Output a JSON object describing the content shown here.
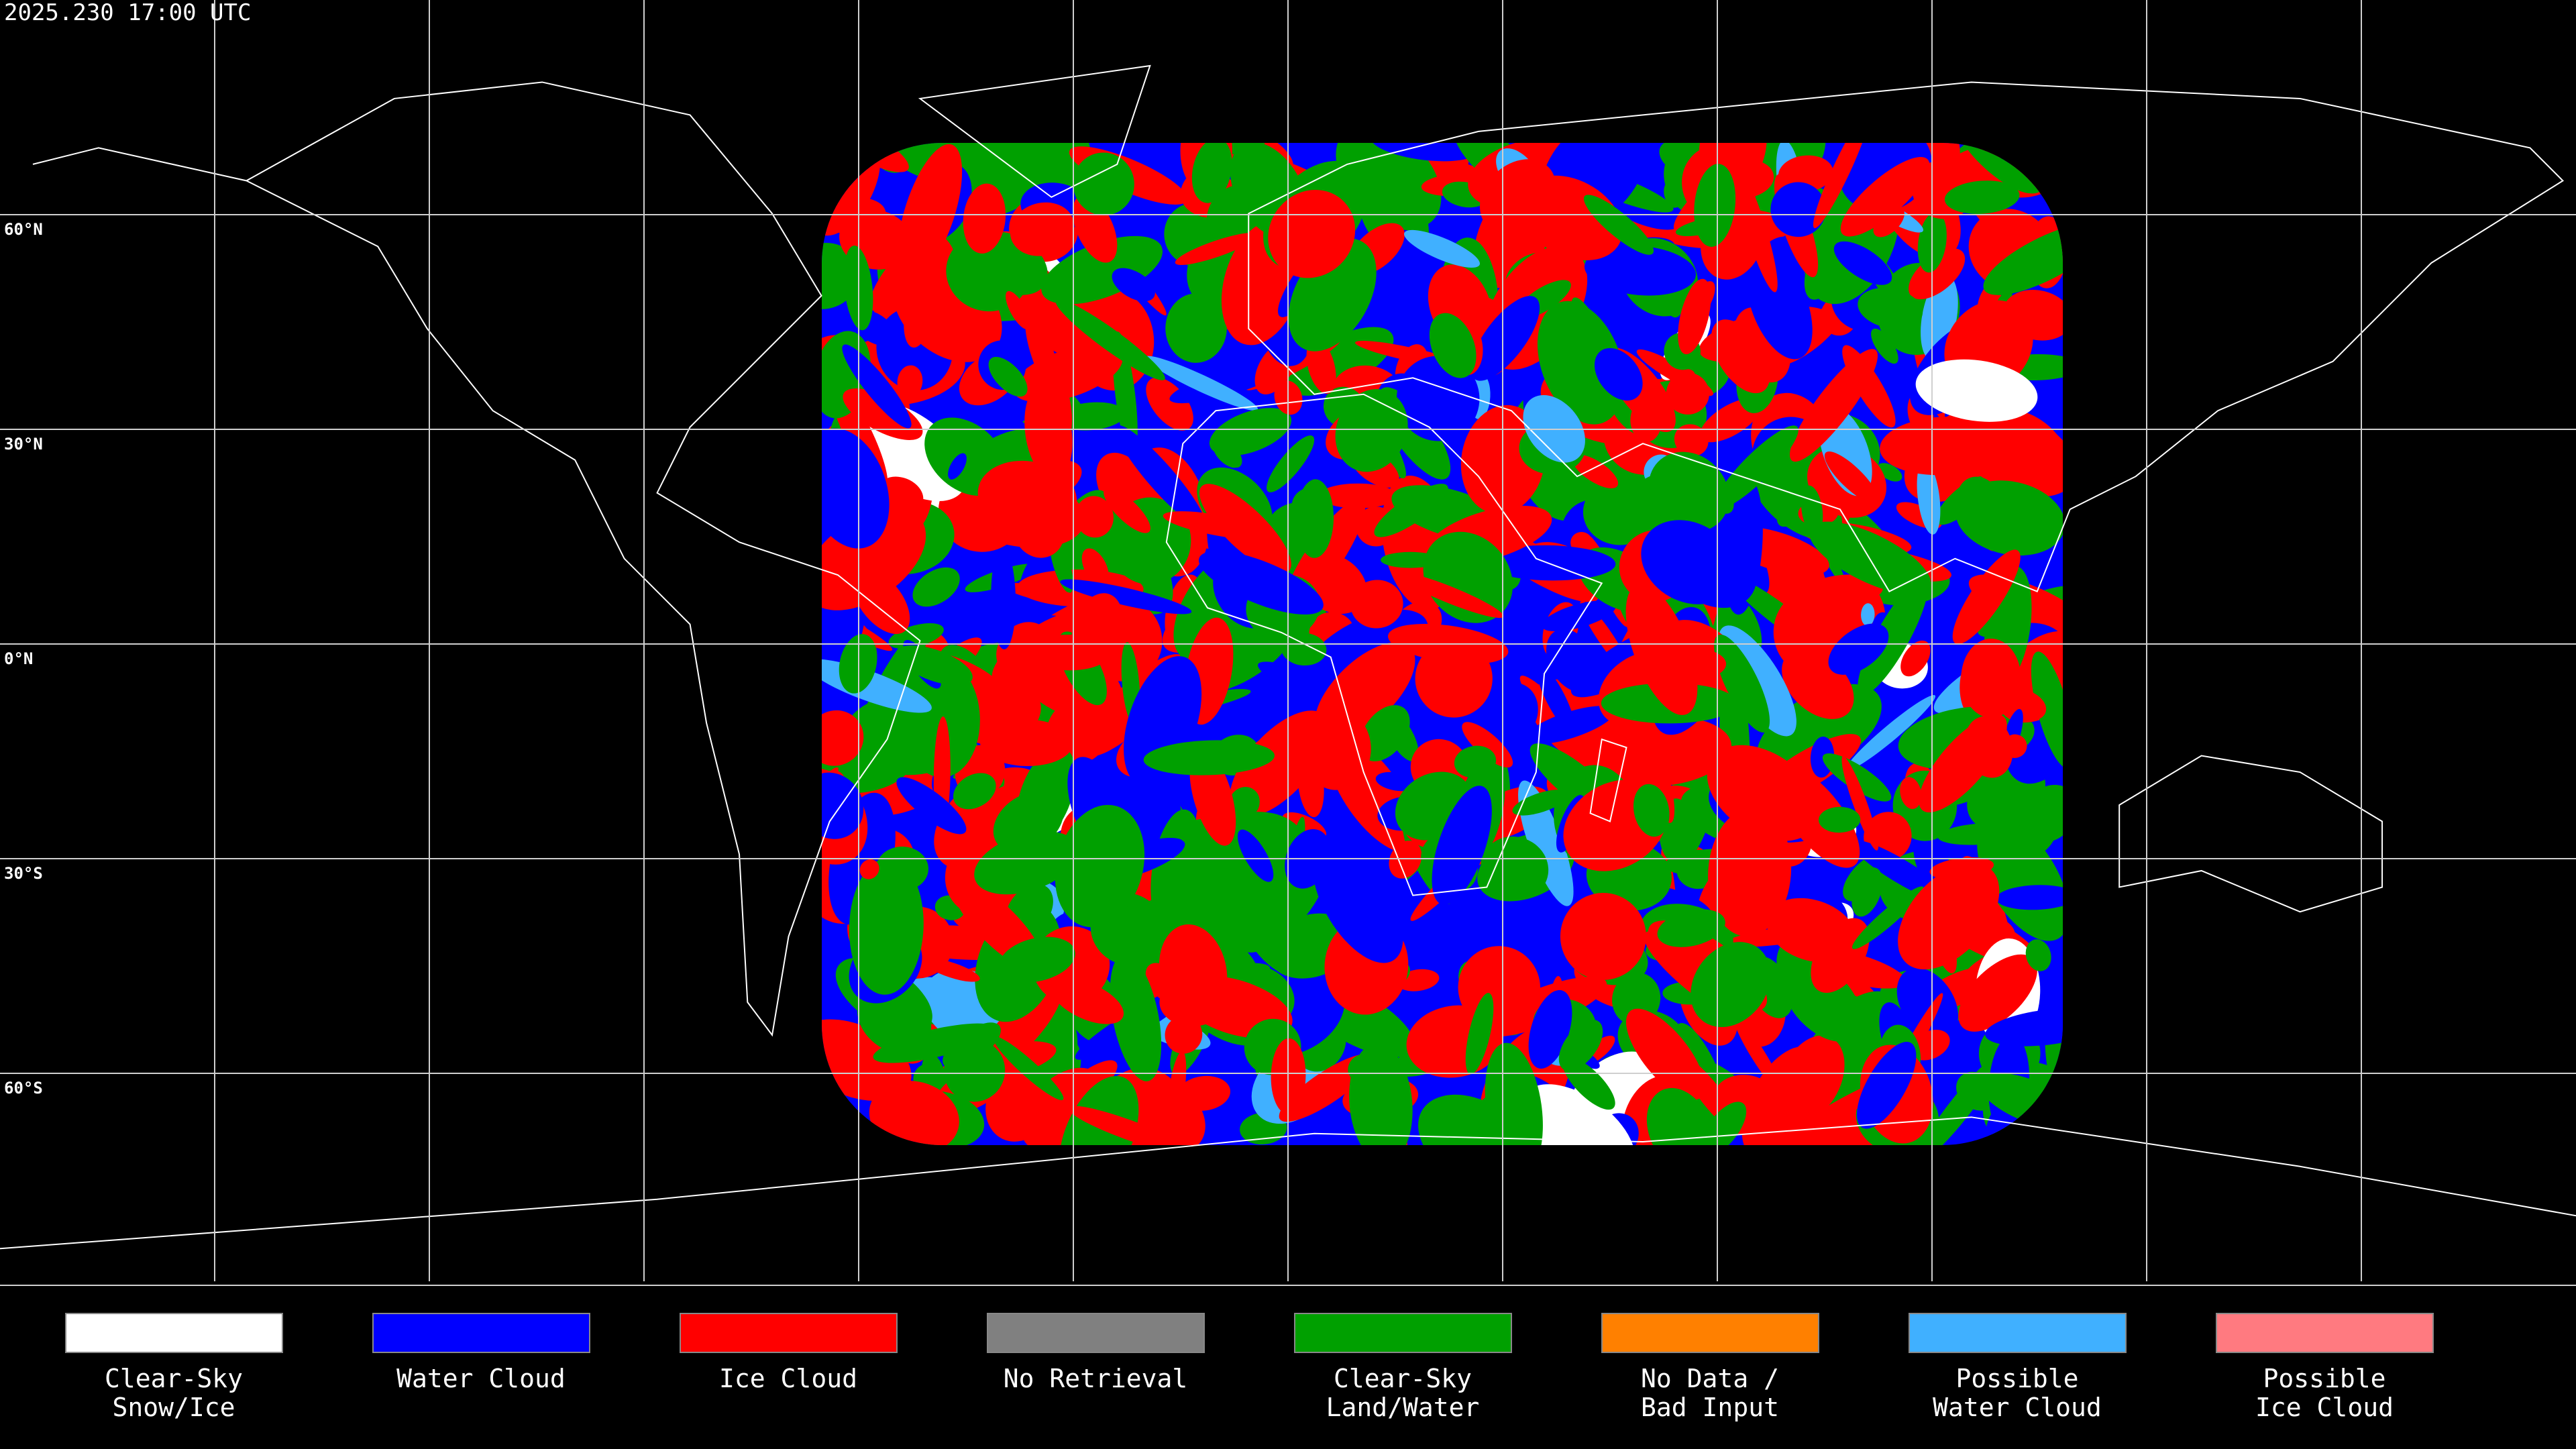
{
  "header": {
    "title": "2025.230 17:00 UTC"
  },
  "lat_labels": [
    "60°N",
    "30°N",
    "0°N",
    "30°S",
    "60°S"
  ],
  "legend": {
    "items": [
      {
        "label": [
          "Clear-Sky",
          "Snow/Ice"
        ],
        "color": "#ffffff"
      },
      {
        "label": [
          "Water Cloud"
        ],
        "color": "#0000ff"
      },
      {
        "label": [
          "Ice Cloud"
        ],
        "color": "#ff0000"
      },
      {
        "label": [
          "No Retrieval"
        ],
        "color": "#808080"
      },
      {
        "label": [
          "Clear-Sky",
          "Land/Water"
        ],
        "color": "#00a000"
      },
      {
        "label": [
          "No Data /",
          "Bad Input"
        ],
        "color": "#ff8000"
      },
      {
        "label": [
          "Possible",
          "Water Cloud"
        ],
        "color": "#40b0ff"
      },
      {
        "label": [
          "Possible",
          "Ice Cloud"
        ],
        "color": "#ff7a80"
      }
    ]
  }
}
